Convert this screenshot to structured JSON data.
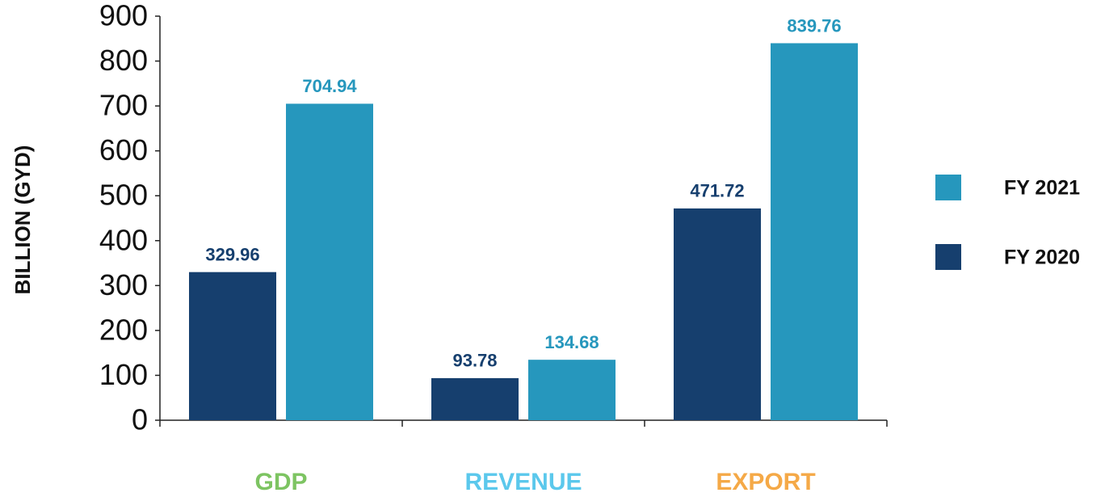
{
  "chart_data": {
    "type": "bar",
    "y_label": "BILLION (GYD)",
    "categories": [
      "GDP",
      "REVENUE",
      "EXPORT"
    ],
    "category_colors": [
      "#7dc462",
      "#5bc8ec",
      "#f5a947"
    ],
    "series": [
      {
        "name": "FY 2020",
        "color": "#163f6e",
        "values": [
          329.96,
          93.78,
          471.72
        ]
      },
      {
        "name": "FY 2021",
        "color": "#2697bd",
        "values": [
          704.94,
          134.68,
          839.76
        ]
      }
    ],
    "ylim": [
      0,
      900
    ],
    "yticks": [
      0,
      100,
      200,
      300,
      400,
      500,
      600,
      700,
      800,
      900
    ],
    "grid": false
  }
}
